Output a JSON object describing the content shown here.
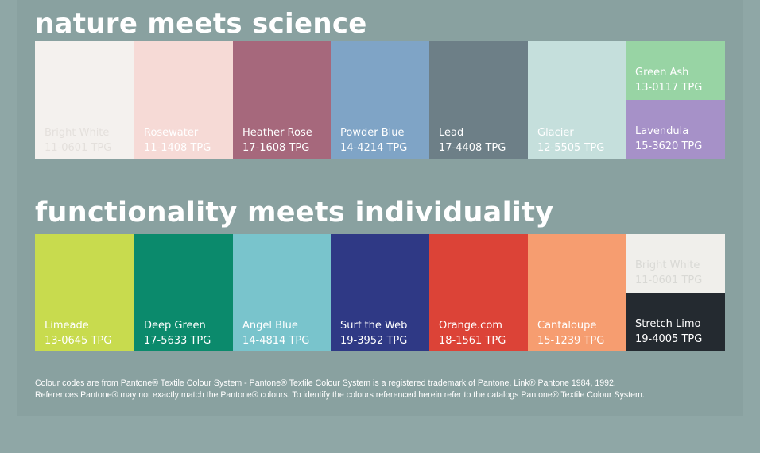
{
  "sections": [
    {
      "title": "nature meets science",
      "swatches": [
        {
          "name": "Bright White",
          "code": "11-0601 TPG",
          "color": "#f4f1ee",
          "text": "#e4e0dc"
        },
        {
          "name": "Rosewater",
          "code": "11-1408 TPG",
          "color": "#f6dad6",
          "text": "#ffffff"
        },
        {
          "name": "Heather Rose",
          "code": "17-1608 TPG",
          "color": "#a6687c",
          "text": "#ffffff"
        },
        {
          "name": "Powder Blue",
          "code": "14-4214 TPG",
          "color": "#7fa4c6",
          "text": "#ffffff"
        },
        {
          "name": "Lead",
          "code": "17-4408 TPG",
          "color": "#6d7f87",
          "text": "#ffffff"
        },
        {
          "name": "Glacier",
          "code": "12-5505 TPG",
          "color": "#c5dfdc",
          "text": "#ffffff"
        },
        {
          "name": "Green Ash",
          "code": "13-0117 TPG",
          "color": "#98d4a4",
          "text": "#ffffff"
        },
        {
          "name": "Lavendula",
          "code": "15-3620 TPG",
          "color": "#a691c8",
          "text": "#ffffff"
        }
      ]
    },
    {
      "title": "functionality meets individuality",
      "swatches": [
        {
          "name": "Limeade",
          "code": "13-0645 TPG",
          "color": "#c8db4e",
          "text": "#ffffff"
        },
        {
          "name": "Deep Green",
          "code": "17-5633 TPG",
          "color": "#0b8a6c",
          "text": "#ffffff"
        },
        {
          "name": "Angel Blue",
          "code": "14-4814 TPG",
          "color": "#79c4cc",
          "text": "#ffffff"
        },
        {
          "name": "Surf the Web",
          "code": "19-3952 TPG",
          "color": "#2f3985",
          "text": "#ffffff"
        },
        {
          "name": "Orange.com",
          "code": "18-1561 TPG",
          "color": "#dc4337",
          "text": "#ffffff"
        },
        {
          "name": "Cantaloupe",
          "code": "15-1239 TPG",
          "color": "#f69d70",
          "text": "#ffffff"
        },
        {
          "name": "Bright White",
          "code": "11-0601 TPG",
          "color": "#f0efeb",
          "text": "#d9d9d5"
        },
        {
          "name": "Stretch Limo",
          "code": "19-4005 TPG",
          "color": "#242a30",
          "text": "#ffffff"
        }
      ]
    }
  ],
  "footer": {
    "line1": "Colour  codes are from Pantone® Textile Colour System  - Pantone® Textile Colour System is a registered trademark of Pantone. Link® Pantone 1984, 1992.",
    "line2": "References Pantone® may not exactly match the Pantone® colours. To identify the colours referenced herein refer to the catalogs Pantone® Textile Colour System."
  }
}
